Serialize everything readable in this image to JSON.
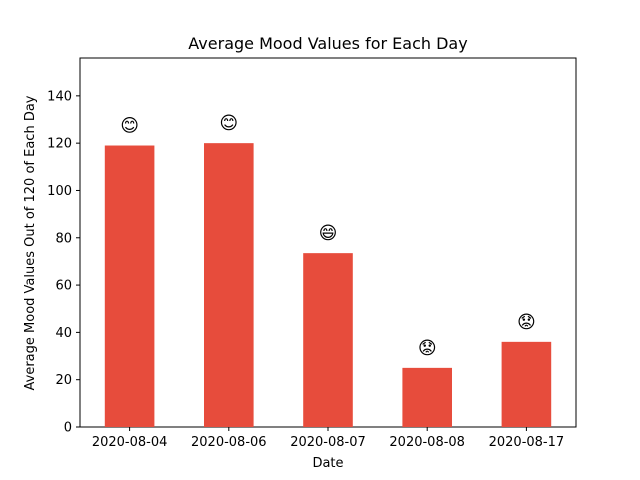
{
  "chart_data": {
    "type": "bar",
    "title": "Average Mood Values for Each Day",
    "xlabel": "Date",
    "ylabel": "Average Mood Values Out of 120 of Each Day",
    "categories": [
      "2020-08-04",
      "2020-08-06",
      "2020-08-07",
      "2020-08-08",
      "2020-08-17"
    ],
    "values": [
      119,
      120,
      73.5,
      25,
      36
    ],
    "annotations": [
      "😊",
      "😊",
      "😄",
      "😟",
      "😟"
    ],
    "ylim": [
      0,
      156
    ],
    "yticks": [
      0,
      20,
      40,
      60,
      80,
      100,
      120,
      140
    ],
    "bar_color": "#e74c3c",
    "grid": false,
    "legend": "none"
  }
}
